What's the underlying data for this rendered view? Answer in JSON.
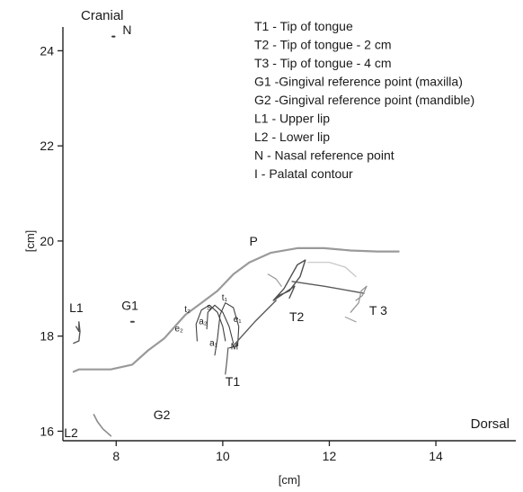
{
  "chart_data": {
    "type": "line",
    "title": "",
    "xlabel": "[cm]",
    "ylabel": "[cm]",
    "xlim": [
      7,
      15.5
    ],
    "ylim": [
      15.8,
      24.5
    ],
    "x_ticks": [
      8,
      10,
      12,
      14
    ],
    "y_ticks": [
      16,
      18,
      20,
      22,
      24
    ],
    "grid": false,
    "orientation_labels": {
      "top_left": "Cranial",
      "bottom_right": "Dorsal"
    },
    "legend_position": "top-right",
    "legend": [
      "T1 - Tip of tongue",
      "T2 - Tip of tongue - 2 cm",
      "T3 - Tip of tongue - 4 cm",
      "G1 -Gingival reference point (maxilla)",
      "G2 -Gingival reference point (mandible)",
      "L1 - Upper lip",
      "L2 - Lower lip",
      "N -  Nasal reference point",
      "I -    Palatal contour"
    ],
    "series": [
      {
        "key": "palate",
        "label": "P",
        "color": "#9a9a9a",
        "width": 2.2,
        "points": [
          [
            7.2,
            17.25
          ],
          [
            7.3,
            17.3
          ],
          [
            7.6,
            17.3
          ],
          [
            7.9,
            17.3
          ],
          [
            8.3,
            17.4
          ],
          [
            8.6,
            17.7
          ],
          [
            8.9,
            17.95
          ],
          [
            9.1,
            18.2
          ],
          [
            9.3,
            18.45
          ],
          [
            9.6,
            18.7
          ],
          [
            9.9,
            18.95
          ],
          [
            10.2,
            19.3
          ],
          [
            10.5,
            19.55
          ],
          [
            10.9,
            19.75
          ],
          [
            11.4,
            19.85
          ],
          [
            11.9,
            19.85
          ],
          [
            12.4,
            19.8
          ],
          [
            12.9,
            19.78
          ],
          [
            13.3,
            19.78
          ]
        ]
      },
      {
        "key": "tongue_pos_a",
        "color": "#404040",
        "width": 1.1,
        "points": [
          [
            9.52,
            17.9
          ],
          [
            9.5,
            18.25
          ],
          [
            9.6,
            18.55
          ],
          [
            9.75,
            18.65
          ],
          [
            9.9,
            18.5
          ],
          [
            10.0,
            18.2
          ],
          [
            10.05,
            17.9
          ]
        ]
      },
      {
        "key": "tongue_pos_b",
        "color": "#404040",
        "width": 1.1,
        "points": [
          [
            9.7,
            18.15
          ],
          [
            9.72,
            18.5
          ],
          [
            9.85,
            18.65
          ],
          [
            10.0,
            18.5
          ],
          [
            10.12,
            18.2
          ],
          [
            10.2,
            17.85
          ]
        ]
      },
      {
        "key": "tongue_pos_c",
        "color": "#404040",
        "width": 1.1,
        "points": [
          [
            9.85,
            17.6
          ],
          [
            9.9,
            17.95
          ],
          [
            9.95,
            18.45
          ],
          [
            10.05,
            18.7
          ],
          [
            10.2,
            18.6
          ],
          [
            10.3,
            18.2
          ],
          [
            10.28,
            17.8
          ],
          [
            10.12,
            17.75
          ]
        ]
      },
      {
        "key": "t1_path",
        "color": "#5a5a5a",
        "width": 1.2,
        "points": [
          [
            10.1,
            17.75
          ],
          [
            10.08,
            17.5
          ],
          [
            10.05,
            17.2
          ]
        ]
      },
      {
        "key": "t1_t2_link",
        "color": "#5a5a5a",
        "width": 1.4,
        "points": [
          [
            10.2,
            17.8
          ],
          [
            10.6,
            18.3
          ],
          [
            11.0,
            18.75
          ]
        ]
      },
      {
        "key": "t2_loop",
        "color": "#505050",
        "width": 1.4,
        "points": [
          [
            10.95,
            18.75
          ],
          [
            11.15,
            19.0
          ],
          [
            11.4,
            19.5
          ],
          [
            11.55,
            19.6
          ],
          [
            11.45,
            19.25
          ],
          [
            11.25,
            18.95
          ],
          [
            11.05,
            18.85
          ],
          [
            10.95,
            18.75
          ],
          [
            11.35,
            19.05
          ],
          [
            11.25,
            18.8
          ]
        ]
      },
      {
        "key": "t2_tail",
        "color": "#9a9a9a",
        "width": 1.2,
        "points": [
          [
            10.85,
            19.3
          ],
          [
            11.0,
            19.2
          ],
          [
            11.1,
            19.05
          ]
        ]
      },
      {
        "key": "t2_t3_link",
        "color": "#5a5a5a",
        "width": 1.4,
        "points": [
          [
            11.3,
            19.15
          ],
          [
            11.9,
            19.05
          ],
          [
            12.4,
            18.95
          ],
          [
            12.65,
            18.9
          ]
        ]
      },
      {
        "key": "t3_cluster",
        "color": "#909090",
        "width": 1.2,
        "points": [
          [
            12.4,
            18.5
          ],
          [
            12.55,
            18.7
          ],
          [
            12.6,
            18.95
          ],
          [
            12.7,
            19.05
          ],
          [
            12.62,
            18.85
          ],
          [
            12.5,
            18.75
          ]
        ]
      },
      {
        "key": "t3_faint",
        "color": "#c4c4c4",
        "width": 1.2,
        "points": [
          [
            11.6,
            19.55
          ],
          [
            12.0,
            19.55
          ],
          [
            12.3,
            19.45
          ],
          [
            12.5,
            19.25
          ]
        ]
      },
      {
        "key": "t3_tail",
        "color": "#a0a0a0",
        "width": 1.2,
        "points": [
          [
            12.3,
            18.4
          ],
          [
            12.5,
            18.3
          ]
        ]
      },
      {
        "key": "upper_lip",
        "color": "#555555",
        "width": 1.4,
        "points": [
          [
            7.2,
            17.85
          ],
          [
            7.3,
            17.9
          ],
          [
            7.32,
            18.1
          ],
          [
            7.3,
            18.3
          ],
          [
            7.3,
            18.1
          ],
          [
            7.25,
            18.2
          ]
        ]
      },
      {
        "key": "lower_lip",
        "color": "#8a8a8a",
        "width": 1.6,
        "points": [
          [
            7.58,
            16.35
          ],
          [
            7.65,
            16.2
          ],
          [
            7.75,
            16.05
          ],
          [
            7.9,
            15.9
          ]
        ]
      },
      {
        "key": "n_mark",
        "color": "#333333",
        "width": 2.0,
        "points": [
          [
            7.93,
            24.3
          ],
          [
            7.97,
            24.3
          ]
        ]
      },
      {
        "key": "g1_mark",
        "color": "#444444",
        "width": 2.0,
        "points": [
          [
            8.28,
            18.3
          ],
          [
            8.33,
            18.3
          ]
        ]
      }
    ],
    "annotations": [
      {
        "text": "P",
        "x": 10.5,
        "y": 19.9,
        "size": "normal"
      },
      {
        "text": "T2",
        "x": 11.25,
        "y": 18.32,
        "size": "normal"
      },
      {
        "text": "T 3",
        "x": 12.75,
        "y": 18.45,
        "size": "normal"
      },
      {
        "text": "T1",
        "x": 10.05,
        "y": 16.95,
        "size": "normal"
      },
      {
        "text": "G1",
        "x": 8.1,
        "y": 18.55,
        "size": "normal"
      },
      {
        "text": "G2",
        "x": 8.7,
        "y": 16.25,
        "size": "normal"
      },
      {
        "text": "L1",
        "x": 7.12,
        "y": 18.5,
        "size": "normal"
      },
      {
        "text": "L2",
        "x": 7.02,
        "y": 15.88,
        "size": "normal"
      },
      {
        "text": "N",
        "x": 8.12,
        "y": 24.35,
        "size": "normal"
      },
      {
        "text": "s",
        "x": 9.7,
        "y": 18.55,
        "size": "small"
      },
      {
        "text": "t₁",
        "x": 9.98,
        "y": 18.75,
        "size": "small"
      },
      {
        "text": "t₂",
        "x": 9.28,
        "y": 18.5,
        "size": "small"
      },
      {
        "text": "a₂",
        "x": 9.55,
        "y": 18.25,
        "size": "small"
      },
      {
        "text": "e₁",
        "x": 10.2,
        "y": 18.3,
        "size": "small"
      },
      {
        "text": "e₂",
        "x": 9.1,
        "y": 18.1,
        "size": "small"
      },
      {
        "text": "a₁",
        "x": 9.75,
        "y": 17.8,
        "size": "small"
      },
      {
        "text": "M",
        "x": 10.15,
        "y": 17.72,
        "size": "small"
      }
    ]
  }
}
